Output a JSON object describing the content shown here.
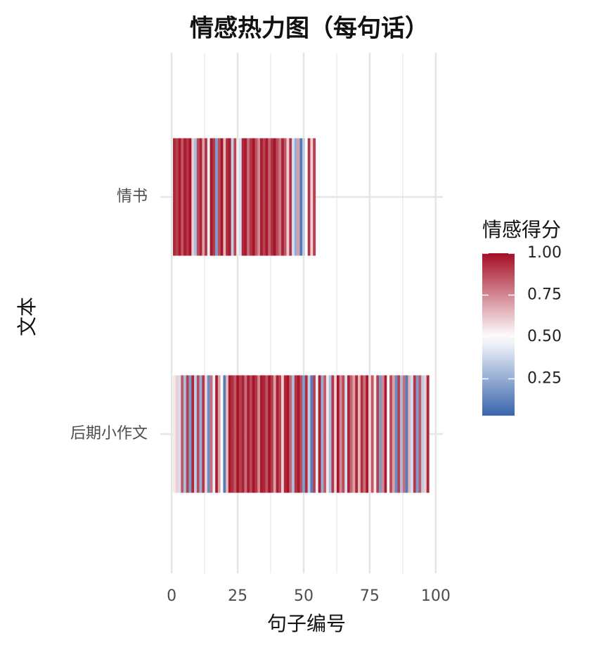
{
  "chart_data": {
    "type": "heatmap",
    "title": "情感热力图（每句话）",
    "x_label": "句子编号",
    "y_label": "文本",
    "legend_title": "情感得分",
    "xlim": [
      -4.3,
      102.7
    ],
    "xticks": [
      0,
      25,
      50,
      75,
      100
    ],
    "xticks_minor": [
      12.5,
      37.5,
      62.5,
      87.5
    ],
    "grid": true,
    "categories": [
      "情书",
      "后期小作文"
    ],
    "rows": [
      {
        "name": "情书",
        "values": [
          0.95,
          0.9,
          0.98,
          0.85,
          0.97,
          0.92,
          0.99,
          0.6,
          0.3,
          0.88,
          0.96,
          0.7,
          0.93,
          0.45,
          0.98,
          0.91,
          0.2,
          0.87,
          0.99,
          0.65,
          0.94,
          0.97,
          0.35,
          0.89,
          0.55,
          0.4,
          0.95,
          0.98,
          0.8,
          0.92,
          0.99,
          0.86,
          0.75,
          0.97,
          0.9,
          0.98,
          0.83,
          0.94,
          0.99,
          0.88,
          0.78,
          0.96,
          0.85,
          0.6,
          0.93,
          0.4,
          0.25,
          0.7,
          0.1,
          0.35,
          0.5,
          0.92,
          0.6,
          0.9
        ]
      },
      {
        "name": "后期小作文",
        "values": [
          0.55,
          0.6,
          0.4,
          0.85,
          0.3,
          0.9,
          0.2,
          0.95,
          0.35,
          0.88,
          0.25,
          0.92,
          0.6,
          0.15,
          0.8,
          0.45,
          0.97,
          0.7,
          0.5,
          0.1,
          0.65,
          0.98,
          0.93,
          0.85,
          0.99,
          0.9,
          0.96,
          0.8,
          0.97,
          0.88,
          0.99,
          0.92,
          0.75,
          0.98,
          0.95,
          0.86,
          0.99,
          0.91,
          0.7,
          0.97,
          0.89,
          0.6,
          0.95,
          0.99,
          0.82,
          0.3,
          0.93,
          0.98,
          0.87,
          0.2,
          0.94,
          0.35,
          0.1,
          0.9,
          0.45,
          0.97,
          0.25,
          0.85,
          0.55,
          0.3,
          0.92,
          0.6,
          0.99,
          0.75,
          0.88,
          0.4,
          0.96,
          0.82,
          0.7,
          0.95,
          0.65,
          0.93,
          0.8,
          0.98,
          0.6,
          0.85,
          0.55,
          0.9,
          0.2,
          0.75,
          0.97,
          0.5,
          0.88,
          0.7,
          0.15,
          0.9,
          0.3,
          0.8,
          0.1,
          0.65,
          0.4,
          0.92,
          0.2,
          0.85,
          0.35,
          0.6,
          0.95
        ]
      }
    ],
    "color_low": "#2c5aa8",
    "color_mid": "#ffffff",
    "color_high": "#a40f24",
    "color_midpoint": 0.5,
    "colorbar_lim": [
      0.03,
      1.0
    ],
    "colorbar_ticks": [
      0.25,
      {
        "value": 0.5,
        "label": "0.50"
      },
      0.75,
      {
        "value": 1.0,
        "label": "1.00"
      }
    ]
  }
}
